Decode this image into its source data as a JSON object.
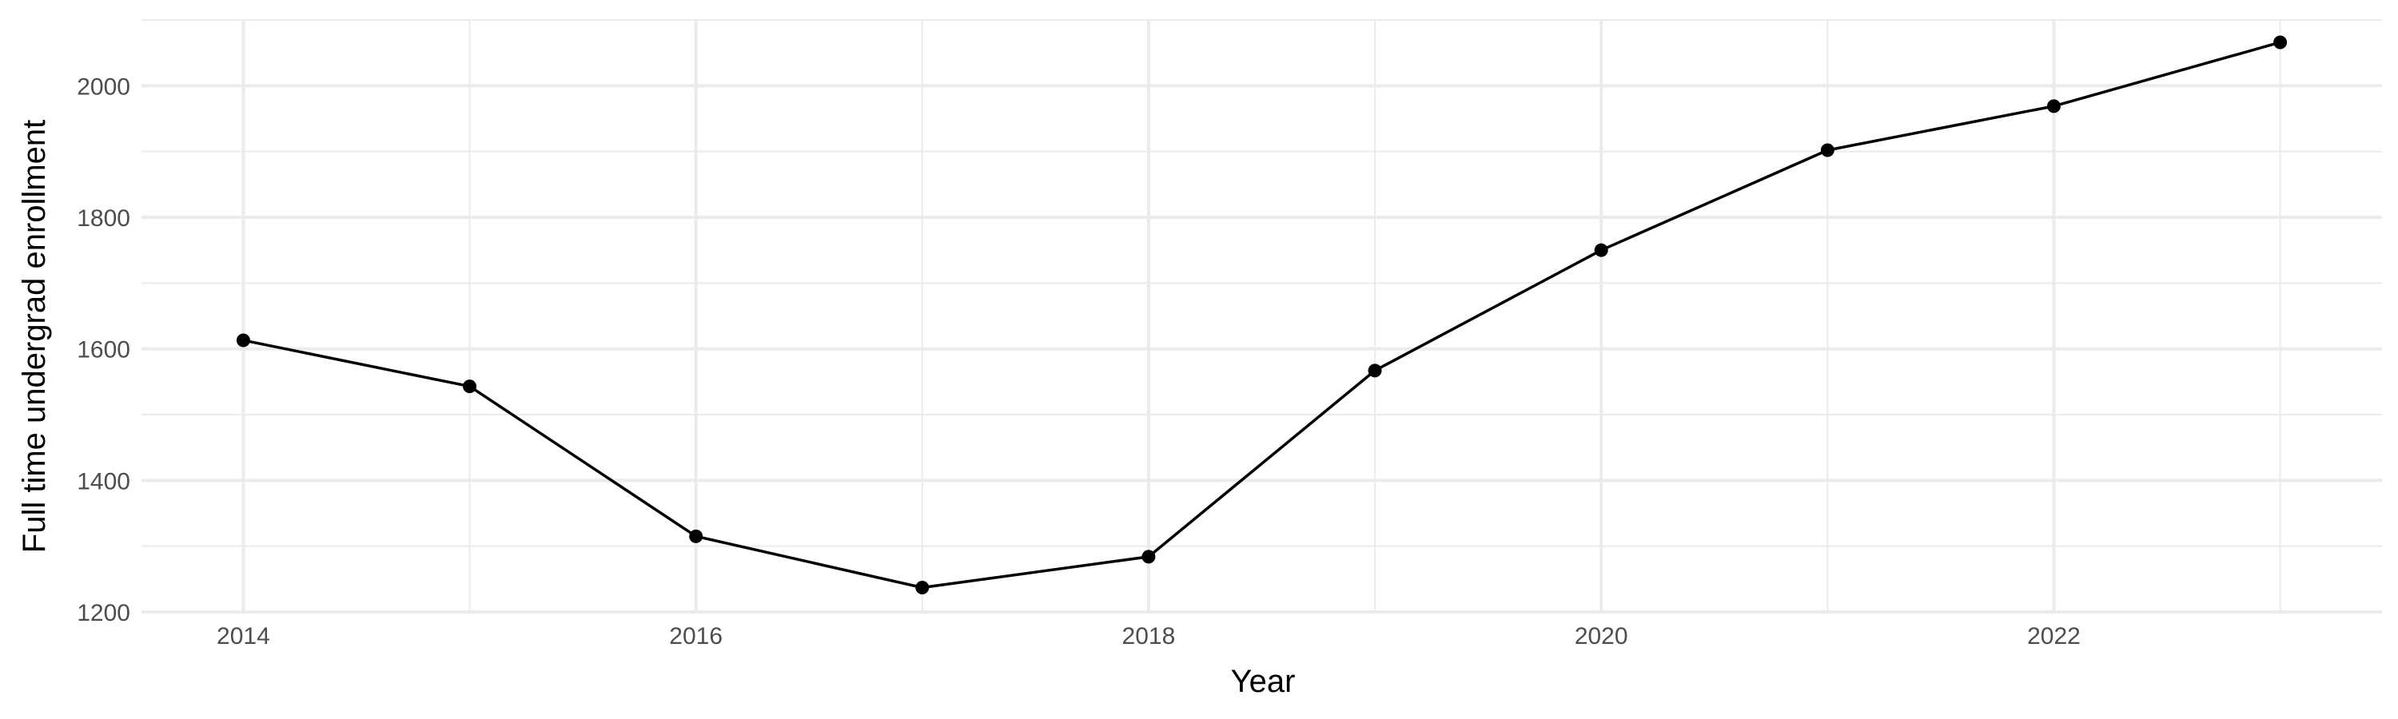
{
  "chart_data": {
    "type": "line",
    "title": "",
    "xlabel": "Year",
    "ylabel": "Full time undergrad enrollment",
    "x": [
      2014,
      2015,
      2016,
      2017,
      2018,
      2019,
      2020,
      2021,
      2022,
      2023
    ],
    "series": [
      {
        "values": [
          1613,
          1543,
          1315,
          1237,
          1284,
          1567,
          1750,
          1902,
          1969,
          2066
        ]
      }
    ],
    "xlim": [
      2013.55,
      2023.45
    ],
    "ylim": [
      1200,
      2100
    ],
    "xticks": [
      2014,
      2016,
      2018,
      2020,
      2022
    ],
    "yticks": [
      1200,
      1400,
      1600,
      1800,
      2000
    ],
    "grid": true,
    "legend": "none",
    "colors": {
      "line": "#000000",
      "grid": "#ebebeb",
      "tick_text": "#4d4d4d"
    }
  }
}
